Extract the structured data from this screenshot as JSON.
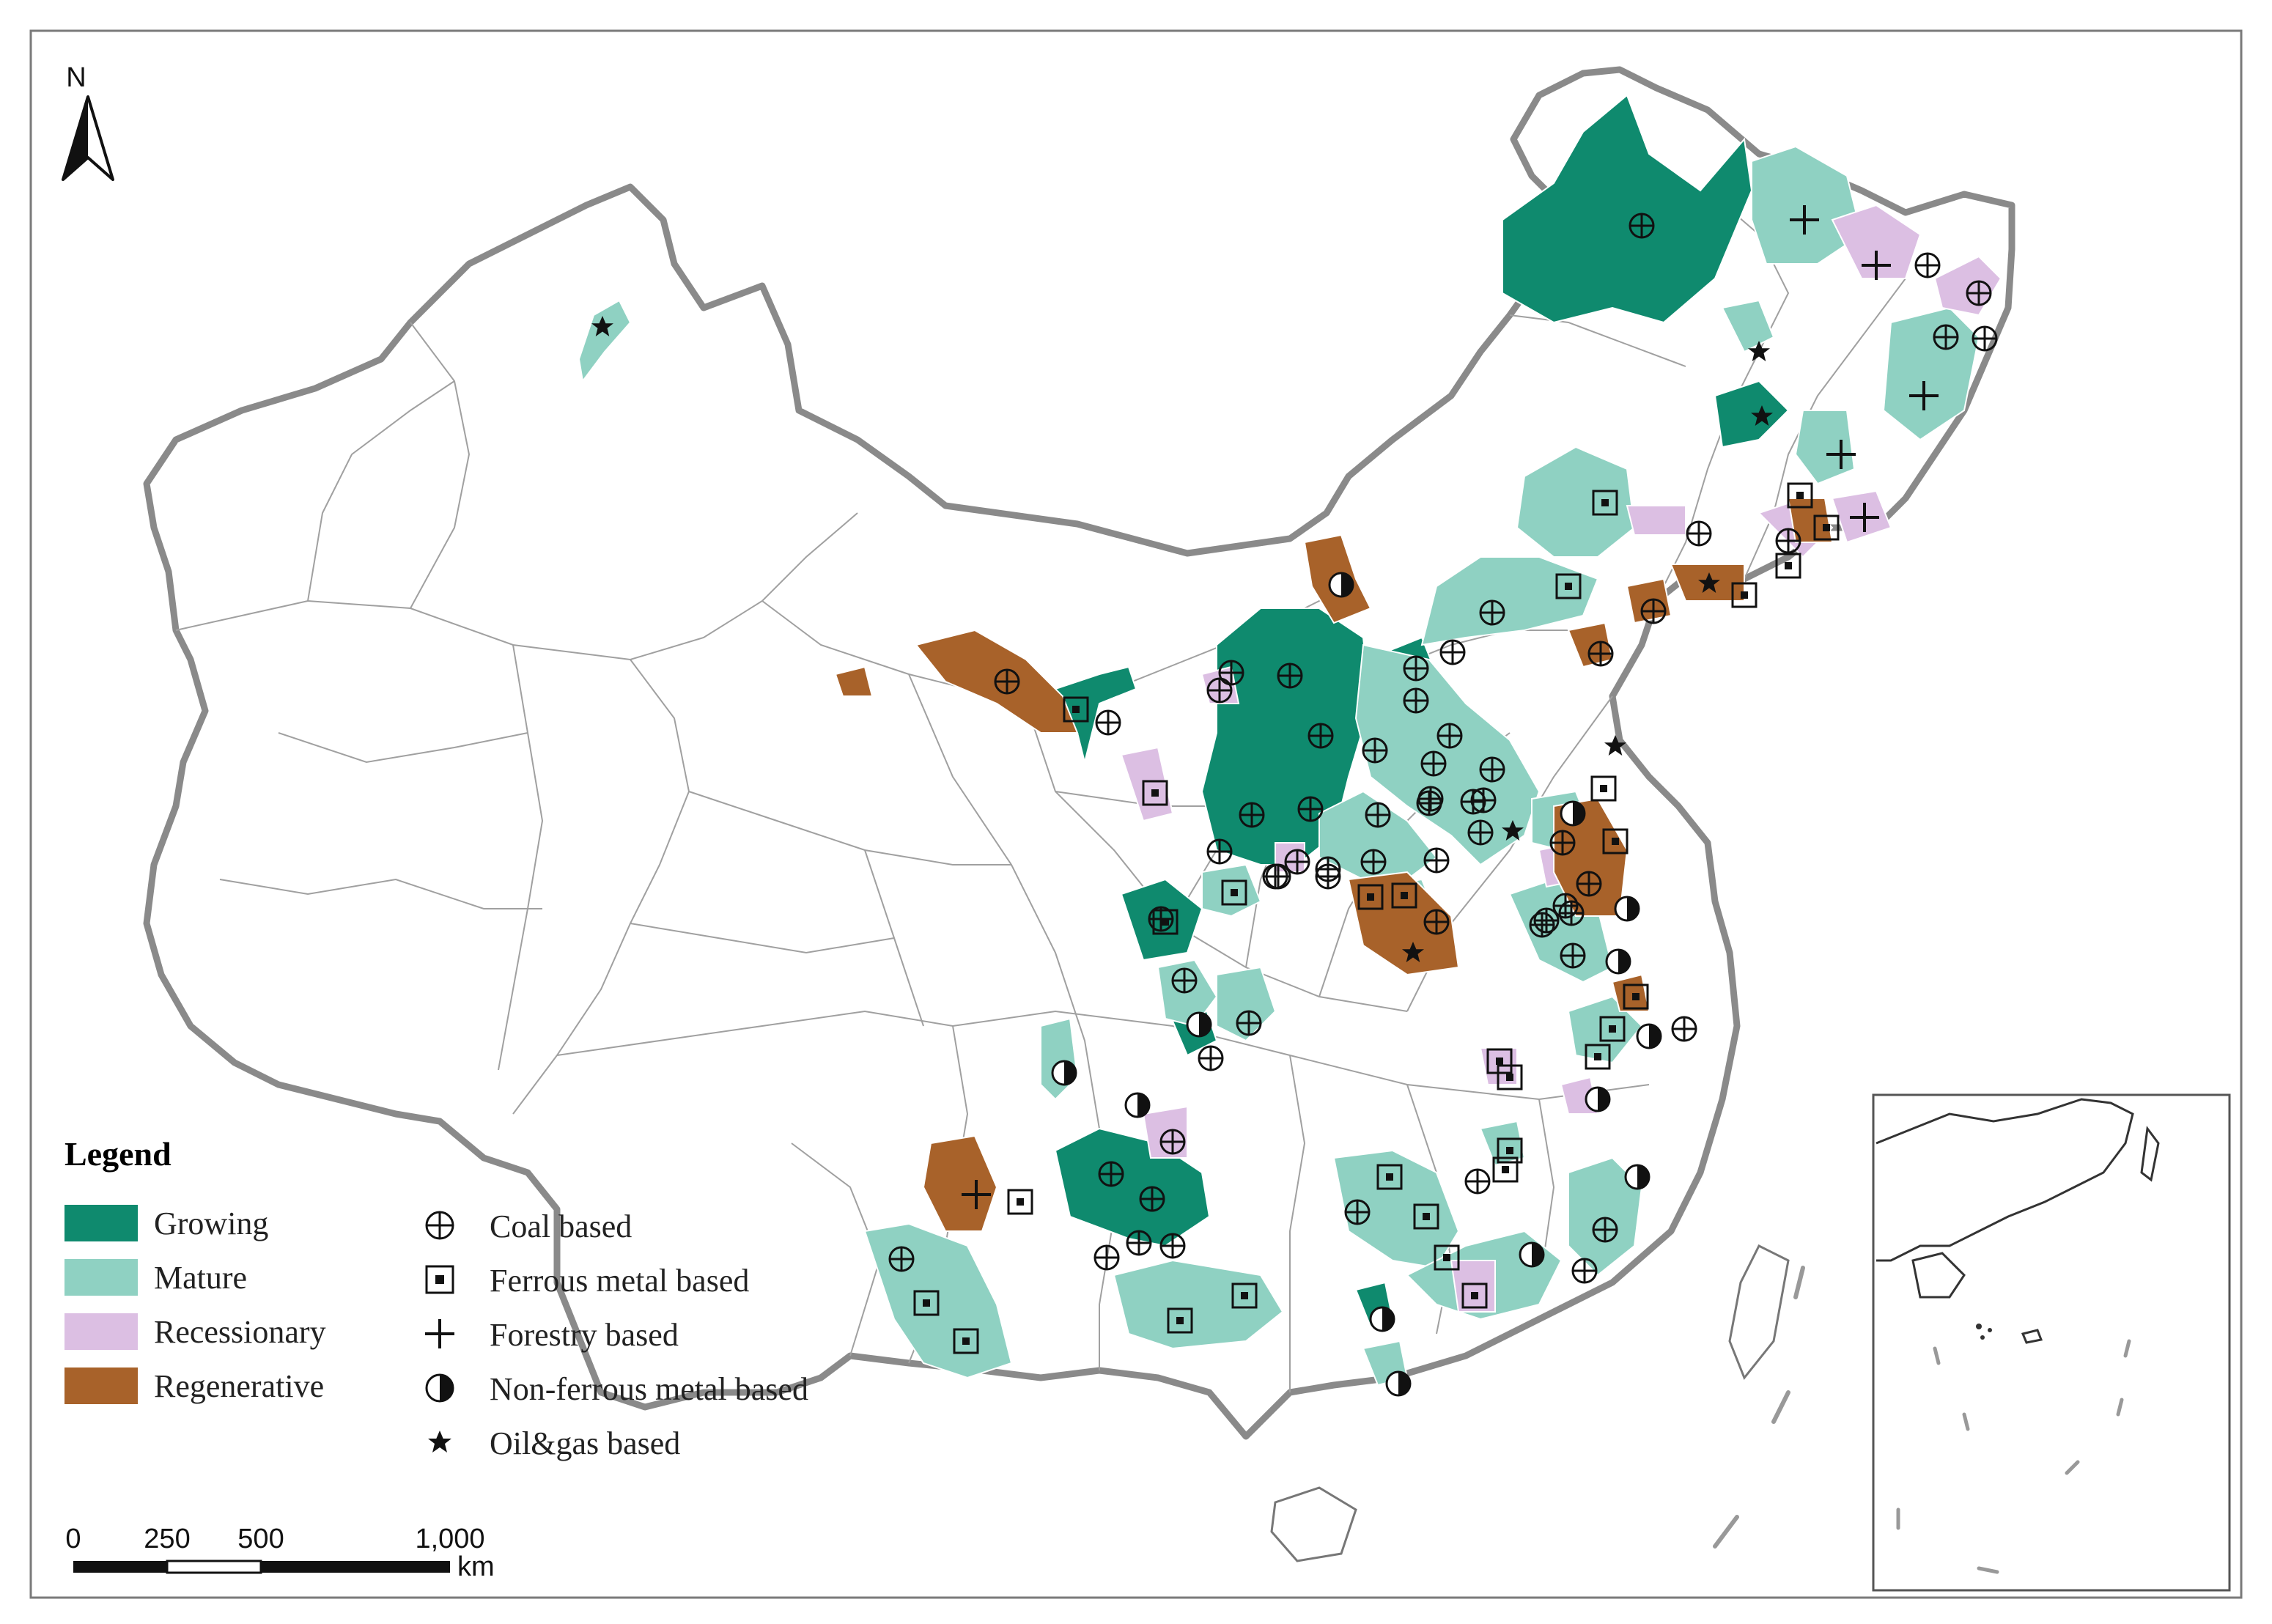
{
  "map": {
    "north_label": "N",
    "legend": {
      "title": "Legend",
      "stages": [
        {
          "label": "Growing",
          "color": "#0f8a6e"
        },
        {
          "label": "Mature",
          "color": "#8fd1c2"
        },
        {
          "label": "Recessionary",
          "color": "#dcbfe3"
        },
        {
          "label": "Regenerative",
          "color": "#a8622a"
        }
      ],
      "types": [
        {
          "label": "Coal based",
          "icon": "coal-circle-cross-icon"
        },
        {
          "label": "Ferrous metal based",
          "icon": "ferrous-boxed-square-icon"
        },
        {
          "label": "Forestry based",
          "icon": "forestry-cross-icon"
        },
        {
          "label": "Non-ferrous metal based",
          "icon": "nonferrous-half-circle-icon"
        },
        {
          "label": "Oil&gas based",
          "icon": "oilgas-star-icon"
        }
      ]
    },
    "scale_bar": {
      "ticks": [
        "0",
        "250",
        "500",
        "1,000"
      ],
      "unit": "km"
    },
    "colors": {
      "border": "#8a8a8a",
      "province_line": "#9a9a9a",
      "symbol": "#111111"
    }
  }
}
